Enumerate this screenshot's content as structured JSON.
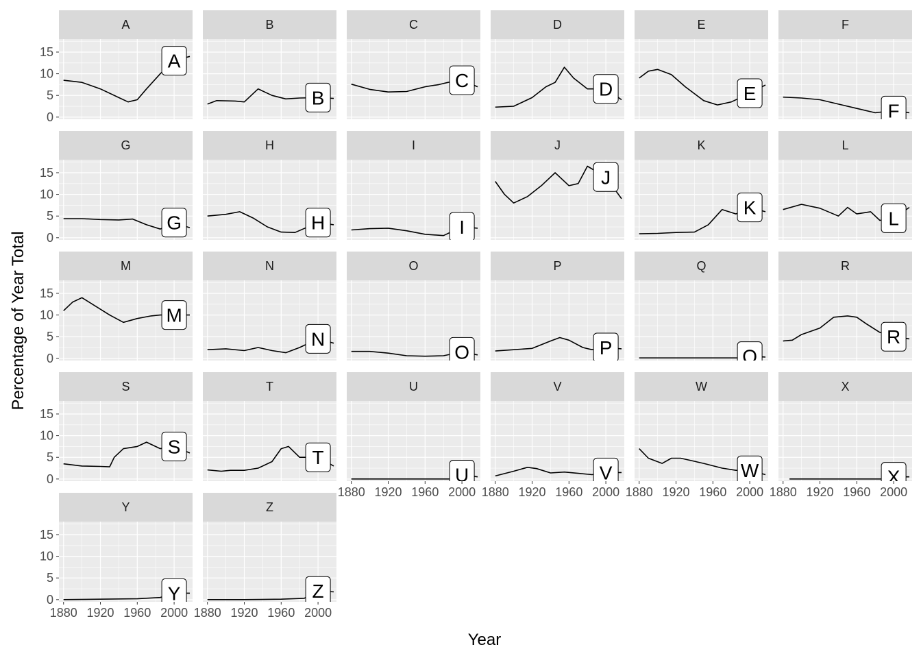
{
  "chart_data": {
    "type": "line",
    "facet_layout": "6 columns, free panels; x axis labels only on bottom row of each column",
    "xlabel": "Year",
    "ylabel": "Percentage of Year Total",
    "xlim": [
      1875,
      2020
    ],
    "ylim": [
      -0.5,
      18
    ],
    "x_ticks": [
      1880,
      1920,
      1960,
      2000
    ],
    "y_ticks": [
      0,
      5,
      10,
      15
    ],
    "grid": true,
    "colors": {
      "panel_bg": "#ebebeb",
      "strip_bg": "#d9d9d9",
      "grid": "#ffffff",
      "line": "#000000",
      "label_bg": "#ffffff"
    },
    "panels": [
      {
        "name": "A",
        "label": "A",
        "label_point": [
          2000,
          13
        ],
        "points": [
          [
            1880,
            8.5
          ],
          [
            1900,
            8
          ],
          [
            1920,
            6.5
          ],
          [
            1940,
            4.5
          ],
          [
            1950,
            3.5
          ],
          [
            1960,
            4
          ],
          [
            1970,
            6.5
          ],
          [
            1985,
            10
          ],
          [
            2000,
            13
          ],
          [
            2017,
            14
          ]
        ]
      },
      {
        "name": "B",
        "label": "B",
        "label_point": [
          2000,
          4.5
        ],
        "points": [
          [
            1880,
            3
          ],
          [
            1890,
            3.8
          ],
          [
            1910,
            3.7
          ],
          [
            1920,
            3.5
          ],
          [
            1935,
            6.5
          ],
          [
            1950,
            5
          ],
          [
            1965,
            4.2
          ],
          [
            1980,
            4.4
          ],
          [
            2000,
            4.5
          ],
          [
            2017,
            4.3
          ]
        ]
      },
      {
        "name": "C",
        "label": "C",
        "label_point": [
          2000,
          8.5
        ],
        "points": [
          [
            1880,
            7.6
          ],
          [
            1900,
            6.4
          ],
          [
            1920,
            5.8
          ],
          [
            1940,
            5.9
          ],
          [
            1960,
            7
          ],
          [
            1975,
            7.5
          ],
          [
            1985,
            8
          ],
          [
            2000,
            8.5
          ],
          [
            2017,
            7
          ]
        ]
      },
      {
        "name": "D",
        "label": "D",
        "label_point": [
          2000,
          6.5
        ],
        "points": [
          [
            1880,
            2.3
          ],
          [
            1900,
            2.5
          ],
          [
            1920,
            4.5
          ],
          [
            1935,
            7
          ],
          [
            1945,
            8
          ],
          [
            1955,
            11.5
          ],
          [
            1965,
            9
          ],
          [
            1980,
            6.5
          ],
          [
            2000,
            6.5
          ],
          [
            2017,
            4
          ]
        ]
      },
      {
        "name": "E",
        "label": "E",
        "label_point": [
          2000,
          5.5
        ],
        "points": [
          [
            1880,
            9
          ],
          [
            1890,
            10.6
          ],
          [
            1900,
            11
          ],
          [
            1915,
            9.8
          ],
          [
            1930,
            7
          ],
          [
            1950,
            3.8
          ],
          [
            1965,
            2.8
          ],
          [
            1980,
            3.5
          ],
          [
            2000,
            5.5
          ],
          [
            2017,
            7.4
          ]
        ]
      },
      {
        "name": "F",
        "label": "F",
        "label_point": [
          2000,
          1.5
        ],
        "points": [
          [
            1880,
            4.6
          ],
          [
            1900,
            4.4
          ],
          [
            1920,
            4
          ],
          [
            1940,
            3
          ],
          [
            1960,
            2
          ],
          [
            1980,
            1
          ],
          [
            2000,
            1.5
          ],
          [
            2017,
            1
          ]
        ]
      },
      {
        "name": "G",
        "label": "G",
        "label_point": [
          2000,
          3.5
        ],
        "points": [
          [
            1880,
            4.4
          ],
          [
            1900,
            4.4
          ],
          [
            1920,
            4.2
          ],
          [
            1940,
            4.1
          ],
          [
            1955,
            4.3
          ],
          [
            1970,
            3
          ],
          [
            1985,
            2
          ],
          [
            2000,
            3.5
          ],
          [
            2017,
            2.3
          ]
        ]
      },
      {
        "name": "H",
        "label": "H",
        "label_point": [
          2000,
          3.5
        ],
        "points": [
          [
            1880,
            5
          ],
          [
            1900,
            5.4
          ],
          [
            1915,
            6
          ],
          [
            1930,
            4.5
          ],
          [
            1945,
            2.5
          ],
          [
            1960,
            1.3
          ],
          [
            1975,
            1.2
          ],
          [
            2000,
            3.5
          ],
          [
            2017,
            3
          ]
        ]
      },
      {
        "name": "I",
        "label": "I",
        "label_point": [
          2000,
          2.5
        ],
        "points": [
          [
            1880,
            1.8
          ],
          [
            1900,
            2.1
          ],
          [
            1920,
            2.2
          ],
          [
            1940,
            1.6
          ],
          [
            1960,
            0.8
          ],
          [
            1980,
            0.5
          ],
          [
            2000,
            2.5
          ],
          [
            2017,
            2.2
          ]
        ]
      },
      {
        "name": "J",
        "label": "J",
        "label_point": [
          2000,
          14
        ],
        "points": [
          [
            1880,
            13
          ],
          [
            1890,
            10
          ],
          [
            1900,
            8
          ],
          [
            1915,
            9.5
          ],
          [
            1930,
            12
          ],
          [
            1945,
            15
          ],
          [
            1960,
            12
          ],
          [
            1970,
            12.5
          ],
          [
            1980,
            16.5
          ],
          [
            2000,
            14
          ],
          [
            2017,
            9
          ]
        ]
      },
      {
        "name": "K",
        "label": "K",
        "label_point": [
          2000,
          7
        ],
        "points": [
          [
            1880,
            0.9
          ],
          [
            1900,
            1
          ],
          [
            1920,
            1.2
          ],
          [
            1940,
            1.3
          ],
          [
            1955,
            3
          ],
          [
            1970,
            6.5
          ],
          [
            1985,
            5.5
          ],
          [
            2000,
            7
          ],
          [
            2017,
            6
          ]
        ]
      },
      {
        "name": "L",
        "label": "L",
        "label_point": [
          2000,
          4.5
        ],
        "points": [
          [
            1880,
            6.5
          ],
          [
            1900,
            7.7
          ],
          [
            1920,
            6.8
          ],
          [
            1940,
            5
          ],
          [
            1950,
            7
          ],
          [
            1960,
            5.5
          ],
          [
            1975,
            6
          ],
          [
            1985,
            4
          ],
          [
            2000,
            4.5
          ],
          [
            2017,
            7
          ]
        ]
      },
      {
        "name": "M",
        "label": "M",
        "label_point": [
          2000,
          10
        ],
        "points": [
          [
            1880,
            11
          ],
          [
            1890,
            13
          ],
          [
            1900,
            14
          ],
          [
            1915,
            12
          ],
          [
            1930,
            10
          ],
          [
            1945,
            8.3
          ],
          [
            1960,
            9.2
          ],
          [
            1975,
            9.8
          ],
          [
            1985,
            10
          ],
          [
            2000,
            10
          ],
          [
            2017,
            10
          ]
        ]
      },
      {
        "name": "N",
        "label": "N",
        "label_point": [
          2000,
          4.5
        ],
        "points": [
          [
            1880,
            2
          ],
          [
            1900,
            2.2
          ],
          [
            1920,
            1.8
          ],
          [
            1935,
            2.5
          ],
          [
            1950,
            1.8
          ],
          [
            1965,
            1.3
          ],
          [
            1980,
            2.5
          ],
          [
            2000,
            4.5
          ],
          [
            2017,
            3.5
          ]
        ]
      },
      {
        "name": "O",
        "label": "O",
        "label_point": [
          2000,
          1.5
        ],
        "points": [
          [
            1880,
            1.6
          ],
          [
            1900,
            1.6
          ],
          [
            1920,
            1.2
          ],
          [
            1940,
            0.6
          ],
          [
            1960,
            0.5
          ],
          [
            1980,
            0.6
          ],
          [
            2000,
            1.5
          ],
          [
            2017,
            0.8
          ]
        ]
      },
      {
        "name": "P",
        "label": "P",
        "label_point": [
          2000,
          2.5
        ],
        "points": [
          [
            1880,
            1.7
          ],
          [
            1900,
            2
          ],
          [
            1920,
            2.3
          ],
          [
            1940,
            4
          ],
          [
            1950,
            4.8
          ],
          [
            1960,
            4.2
          ],
          [
            1975,
            2.5
          ],
          [
            1985,
            2
          ],
          [
            2000,
            2.5
          ],
          [
            2017,
            2.2
          ]
        ]
      },
      {
        "name": "Q",
        "label": "Q",
        "label_point": [
          2000,
          0.5
        ],
        "points": [
          [
            1880,
            0.1
          ],
          [
            1920,
            0.1
          ],
          [
            1960,
            0.1
          ],
          [
            1990,
            0.1
          ],
          [
            2000,
            0.5
          ],
          [
            2017,
            0.3
          ]
        ]
      },
      {
        "name": "R",
        "label": "R",
        "label_point": [
          2000,
          5
        ],
        "points": [
          [
            1880,
            4
          ],
          [
            1890,
            4.2
          ],
          [
            1900,
            5.5
          ],
          [
            1920,
            7
          ],
          [
            1935,
            9.5
          ],
          [
            1950,
            9.8
          ],
          [
            1960,
            9.5
          ],
          [
            1970,
            8
          ],
          [
            1985,
            6
          ],
          [
            2000,
            5
          ],
          [
            2017,
            4.5
          ]
        ]
      },
      {
        "name": "S",
        "label": "S",
        "label_point": [
          2000,
          7.5
        ],
        "points": [
          [
            1880,
            3.5
          ],
          [
            1900,
            3
          ],
          [
            1920,
            2.9
          ],
          [
            1930,
            2.8
          ],
          [
            1935,
            5
          ],
          [
            1945,
            7
          ],
          [
            1960,
            7.5
          ],
          [
            1970,
            8.5
          ],
          [
            1985,
            7
          ],
          [
            2000,
            7.5
          ],
          [
            2017,
            6
          ]
        ]
      },
      {
        "name": "T",
        "label": "T",
        "label_point": [
          2000,
          5
        ],
        "points": [
          [
            1880,
            2.1
          ],
          [
            1895,
            1.8
          ],
          [
            1905,
            2
          ],
          [
            1920,
            2
          ],
          [
            1935,
            2.5
          ],
          [
            1950,
            4
          ],
          [
            1960,
            7
          ],
          [
            1968,
            7.5
          ],
          [
            1980,
            5
          ],
          [
            2000,
            5
          ],
          [
            2017,
            3
          ]
        ]
      },
      {
        "name": "U",
        "label": "U",
        "label_point": [
          2000,
          1
        ],
        "points": [
          [
            1880,
            0
          ],
          [
            1920,
            0
          ],
          [
            1960,
            0
          ],
          [
            1990,
            0
          ],
          [
            2000,
            1
          ],
          [
            2017,
            0.5
          ]
        ]
      },
      {
        "name": "V",
        "label": "V",
        "label_point": [
          2000,
          1.5
        ],
        "points": [
          [
            1880,
            0.7
          ],
          [
            1900,
            1.8
          ],
          [
            1915,
            2.7
          ],
          [
            1925,
            2.4
          ],
          [
            1940,
            1.4
          ],
          [
            1955,
            1.6
          ],
          [
            1970,
            1.3
          ],
          [
            1985,
            1
          ],
          [
            2000,
            1.5
          ],
          [
            2017,
            1.5
          ]
        ]
      },
      {
        "name": "W",
        "label": "W",
        "label_point": [
          2000,
          2
        ],
        "points": [
          [
            1880,
            7
          ],
          [
            1890,
            4.8
          ],
          [
            1905,
            3.6
          ],
          [
            1915,
            4.8
          ],
          [
            1925,
            4.8
          ],
          [
            1950,
            3.6
          ],
          [
            1970,
            2.5
          ],
          [
            1985,
            2
          ],
          [
            2000,
            2
          ],
          [
            2017,
            1
          ]
        ]
      },
      {
        "name": "X",
        "label": "X",
        "label_point": [
          2000,
          0.5
        ],
        "points": [
          [
            1887,
            0
          ],
          [
            1920,
            0
          ],
          [
            1960,
            0
          ],
          [
            1990,
            0
          ],
          [
            2000,
            0.5
          ],
          [
            2017,
            0.5
          ]
        ]
      },
      {
        "name": "Y",
        "label": "Y",
        "label_point": [
          2000,
          1.5
        ],
        "points": [
          [
            1880,
            0
          ],
          [
            1920,
            0.1
          ],
          [
            1960,
            0.2
          ],
          [
            1985,
            0.5
          ],
          [
            2000,
            1.5
          ],
          [
            2017,
            1.5
          ]
        ]
      },
      {
        "name": "Z",
        "label": "Z",
        "label_point": [
          2000,
          2
        ],
        "points": [
          [
            1880,
            0
          ],
          [
            1920,
            0
          ],
          [
            1960,
            0.1
          ],
          [
            1985,
            0.3
          ],
          [
            2000,
            2
          ],
          [
            2017,
            1.8
          ]
        ]
      }
    ]
  }
}
